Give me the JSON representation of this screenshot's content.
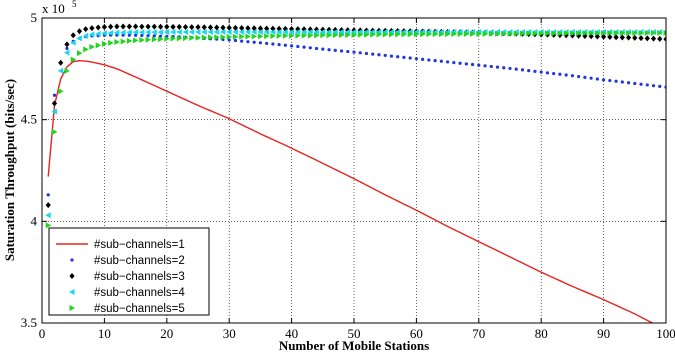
{
  "chart_data": {
    "type": "line",
    "title": "",
    "xlabel": "Number of Mobile Stations",
    "ylabel": "Saturation Throughput (bits/sec)",
    "y_multiplier_base": "x 10",
    "y_multiplier_exp": "5",
    "xlim": [
      0,
      100
    ],
    "ylim": [
      350000,
      500000
    ],
    "x_ticks": [
      10,
      20,
      30,
      40,
      50,
      60,
      70,
      80,
      90,
      100
    ],
    "x_tick_labels": [
      "10",
      "20",
      "30",
      "40",
      "50",
      "60",
      "70",
      "80",
      "90",
      "100"
    ],
    "y_ticks": [
      350000,
      400000,
      450000,
      500000
    ],
    "y_tick_labels": [
      "3.5",
      "4",
      "4.5",
      "5"
    ],
    "x_tick_label_zero": "0",
    "grid": true,
    "legend_position": "bottom-left",
    "series": [
      {
        "name": "#sub−channels=1",
        "style": "line",
        "color": "#e8231f",
        "x": [
          1,
          2,
          3,
          4,
          5,
          6,
          7,
          8,
          10,
          12,
          15,
          20,
          25,
          30,
          35,
          40,
          45,
          50,
          55,
          60,
          65,
          70,
          75,
          80,
          85,
          90,
          95,
          100
        ],
        "values": [
          422000,
          457000,
          470000,
          476000,
          478500,
          479000,
          478800,
          478300,
          477000,
          475000,
          471000,
          464000,
          457000,
          450500,
          443000,
          436000,
          428500,
          421000,
          413000,
          405500,
          397500,
          390000,
          382500,
          375000,
          368000,
          361500,
          354500,
          346500
        ]
      },
      {
        "name": "#sub−channels=2",
        "style": "dots",
        "marker": "circle",
        "color": "#1f35e0",
        "x": [
          1,
          2,
          3,
          4,
          5,
          6,
          7,
          8,
          10,
          12,
          15,
          20,
          25,
          30,
          35,
          40,
          45,
          50,
          55,
          60,
          65,
          70,
          75,
          80,
          85,
          90,
          95,
          100
        ],
        "values": [
          413000,
          462000,
          478000,
          485000,
          488500,
          490000,
          490800,
          491200,
          491500,
          491600,
          491500,
          491000,
          490200,
          489200,
          487800,
          486300,
          484700,
          483200,
          481600,
          480000,
          478400,
          476800,
          475200,
          473400,
          471600,
          469600,
          467800,
          466000
        ]
      },
      {
        "name": "#sub−channels=3",
        "style": "dots",
        "marker": "diamond",
        "color": "#000000",
        "x": [
          1,
          2,
          3,
          4,
          5,
          6,
          7,
          8,
          10,
          12,
          15,
          20,
          25,
          30,
          35,
          40,
          45,
          50,
          55,
          60,
          65,
          70,
          75,
          80,
          85,
          90,
          95,
          100
        ],
        "values": [
          408000,
          458000,
          478000,
          487000,
          491500,
          493500,
          494500,
          495000,
          495600,
          495800,
          495800,
          495700,
          495500,
          495200,
          494900,
          494600,
          494300,
          494000,
          493700,
          493400,
          493100,
          492800,
          492400,
          491900,
          491400,
          490800,
          490200,
          489600
        ]
      },
      {
        "name": "#sub−channels=4",
        "style": "dots",
        "marker": "triangle-left",
        "color": "#17d8f0",
        "x": [
          1,
          2,
          3,
          4,
          5,
          6,
          7,
          8,
          10,
          12,
          15,
          20,
          25,
          30,
          35,
          40,
          45,
          50,
          55,
          60,
          65,
          70,
          75,
          80,
          85,
          90,
          95,
          100
        ],
        "values": [
          403000,
          454000,
          474000,
          483000,
          487800,
          490000,
          491200,
          491900,
          492500,
          492800,
          493000,
          493100,
          493100,
          493100,
          493100,
          493100,
          493100,
          493100,
          493100,
          493100,
          493100,
          493100,
          493100,
          493100,
          493100,
          493100,
          493100,
          493100
        ]
      },
      {
        "name": "#sub−channels=5",
        "style": "dots",
        "marker": "triangle-right",
        "color": "#22d41c",
        "x": [
          1,
          2,
          3,
          4,
          5,
          6,
          7,
          8,
          10,
          12,
          15,
          20,
          25,
          30,
          35,
          40,
          45,
          50,
          55,
          60,
          65,
          70,
          75,
          80,
          85,
          90,
          95,
          100
        ],
        "values": [
          398000,
          444000,
          464000,
          474000,
          479500,
          482700,
          484600,
          485800,
          487300,
          488200,
          489000,
          489800,
          490300,
          490700,
          491000,
          491300,
          491500,
          491700,
          491900,
          492000,
          492100,
          492200,
          492300,
          492400,
          492500,
          492600,
          492600,
          492700
        ]
      }
    ]
  }
}
